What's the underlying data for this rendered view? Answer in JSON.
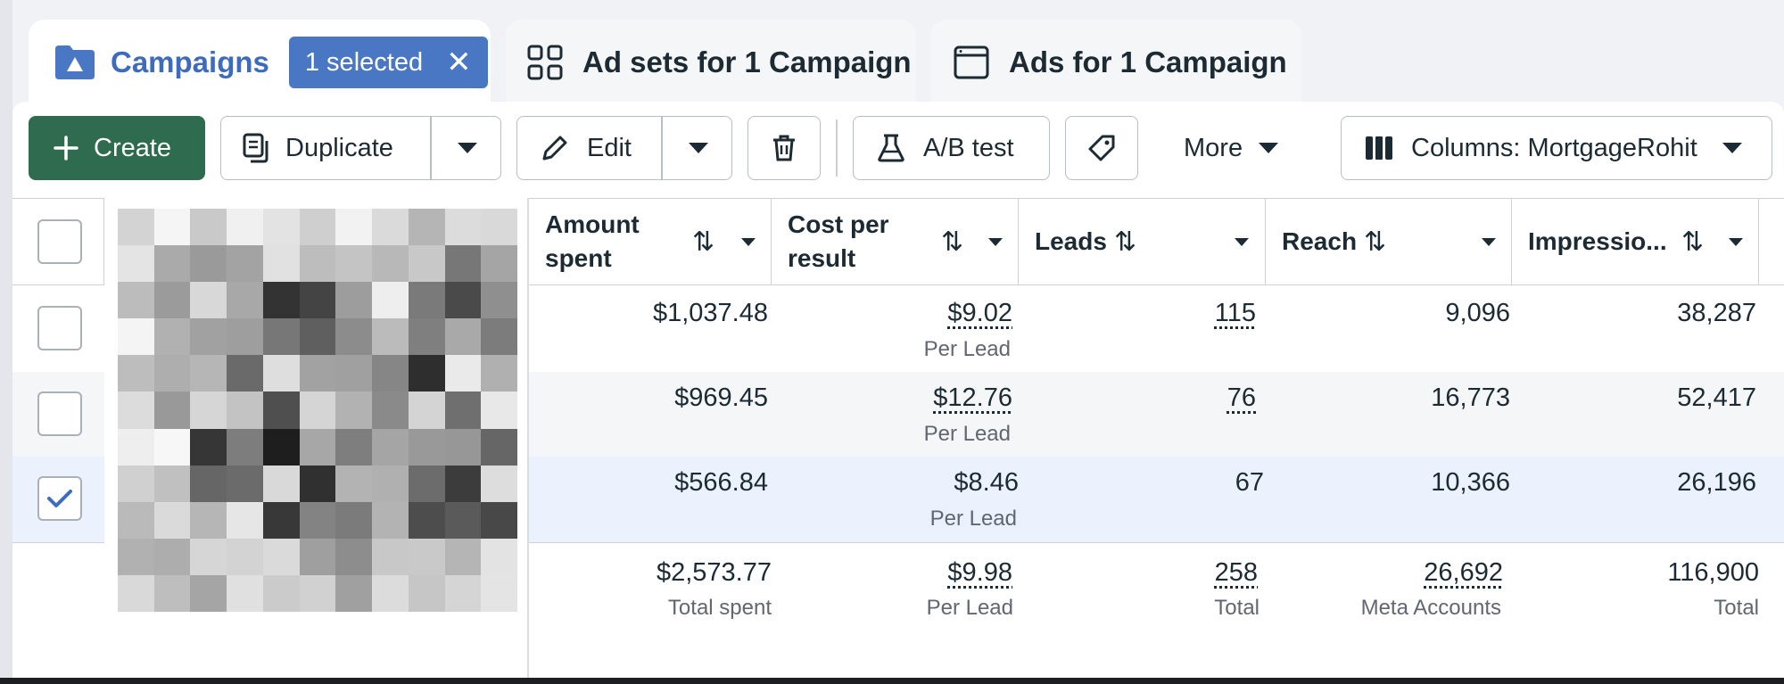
{
  "tabs": {
    "campaigns": {
      "label": "Campaigns",
      "selected_chip": "1 selected",
      "chip_close": "✕"
    },
    "adsets": {
      "label": "Ad sets for 1 Campaign"
    },
    "ads": {
      "label": "Ads for 1 Campaign"
    }
  },
  "toolbar": {
    "create": "Create",
    "duplicate": "Duplicate",
    "edit": "Edit",
    "ab_test": "A/B test",
    "more": "More",
    "columns": "Columns: MortgageRohit"
  },
  "columns": {
    "amount_line1": "Amount",
    "amount_line2": "spent",
    "cpr_line1": "Cost per",
    "cpr_line2": "result",
    "leads": "Leads",
    "reach": "Reach",
    "impressions": "Impressio..."
  },
  "rows": [
    {
      "amount": "$1,037.48",
      "cpr": "$9.02",
      "cpr_sub": "Per Lead",
      "leads": "115",
      "reach": "9,096",
      "impressions": "38,287",
      "checked": false
    },
    {
      "amount": "$969.45",
      "cpr": "$12.76",
      "cpr_sub": "Per Lead",
      "leads": "76",
      "reach": "16,773",
      "impressions": "52,417",
      "checked": false
    },
    {
      "amount": "$566.84",
      "cpr": "$8.46",
      "cpr_sub": "Per Lead",
      "leads": "67",
      "reach": "10,366",
      "impressions": "26,196",
      "checked": true
    }
  ],
  "totals": {
    "amount": "$2,573.77",
    "amount_sub": "Total spent",
    "cpr": "$9.98",
    "cpr_sub": "Per Lead",
    "leads": "258",
    "leads_sub": "Total",
    "reach": "26,692",
    "reach_sub": "Meta Accounts",
    "impressions": "116,900",
    "impressions_sub": "Total"
  },
  "mosaic_shades": [
    "#d3d3d3",
    "#f5f5f5",
    "#c9c9c9",
    "#f0f0f0",
    "#e3e3e3",
    "#cfcfcf",
    "#f2f2f2",
    "#dadada",
    "#b5b5b5",
    "#dcdcdc",
    "#d9d9d9",
    "#e4e4e4",
    "#aaaaaa",
    "#9a9a9a",
    "#a3a3a3",
    "#e1e1e1",
    "#bdbdbd",
    "#c4c4c4",
    "#b8b8b8",
    "#c8c8c8",
    "#777777",
    "#a5a5a5",
    "#bcbcbc",
    "#9b9b9b",
    "#d8d8d8",
    "#a8a8a8",
    "#333333",
    "#444444",
    "#9d9d9d",
    "#eeeeee",
    "#7a7a7a",
    "#4a4a4a",
    "#8f8f8f",
    "#f4f4f4",
    "#b1b1b1",
    "#a1a1a1",
    "#9e9e9e",
    "#777777",
    "#5f5f5f",
    "#8c8c8c",
    "#bbbbbb",
    "#7f7f7f",
    "#a9a9a9",
    "#7c7c7c",
    "#bdbdbd",
    "#aeaeae",
    "#b6b6b6",
    "#6a6a6a",
    "#dedede",
    "#a2a2a2",
    "#a0a0a0",
    "#868686",
    "#2e2e2e",
    "#eaeaea",
    "#b0b0b0",
    "#dcdcdc",
    "#999999",
    "#d6d6d6",
    "#c3c3c3",
    "#4f4f4f",
    "#d5d5d5",
    "#b2b2b2",
    "#8a8a8a",
    "#d4d4d4",
    "#6f6f6f",
    "#e8e8e8",
    "#eeeeee",
    "#f7f7f7",
    "#363636",
    "#7d7d7d",
    "#1e1e1e",
    "#a7a7a7",
    "#7e7e7e",
    "#a5a5a5",
    "#999999",
    "#979797",
    "#666666",
    "#d0d0d0",
    "#c0c0c0",
    "#666666",
    "#6b6b6b",
    "#d9d9d9",
    "#303030",
    "#b3b3b3",
    "#b0b0b0",
    "#6c6c6c",
    "#3c3c3c",
    "#dddddd",
    "#bababa",
    "#dadada",
    "#b6b6b6",
    "#e6e6e6",
    "#383838",
    "#838383",
    "#7b7b7b",
    "#b3b3b3",
    "#4d4d4d",
    "#5a5a5a",
    "#484848",
    "#b1b1b1",
    "#adadad",
    "#d6d6d6",
    "#d3d3d3",
    "#dadada",
    "#9f9f9f",
    "#8d8d8d",
    "#c8c8c8",
    "#c9c9c9",
    "#b5b5b5",
    "#e3e3e3",
    "#d9d9d9",
    "#bebebe",
    "#a5a5a5",
    "#e0e0e0",
    "#cbcbcb",
    "#d1d1d1",
    "#a0a0a0",
    "#dcdcdc",
    "#c6c6c6",
    "#d5d5d5",
    "#e4e4e4"
  ]
}
